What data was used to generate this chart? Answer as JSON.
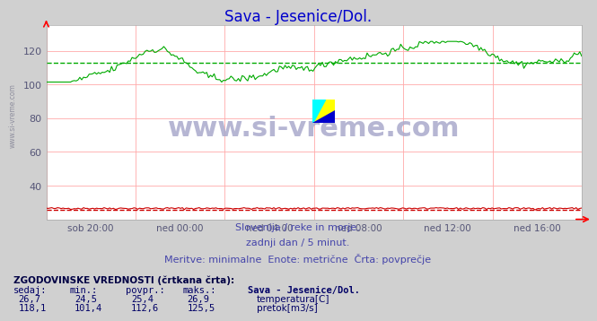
{
  "title": "Sava - Jesenice/Dol.",
  "title_color": "#0000cc",
  "bg_color": "#d0d0d0",
  "plot_bg_color": "#ffffff",
  "xlabel_ticks": [
    "sob 20:00",
    "ned 00:00",
    "ned 04:00",
    "ned 08:00",
    "ned 12:00",
    "ned 16:00"
  ],
  "ylim": [
    20,
    135
  ],
  "yticks": [
    40,
    60,
    80,
    100,
    120
  ],
  "tick_color": "#555577",
  "sub_text1": "Slovenija / reke in morje.",
  "sub_text2": "zadnji dan / 5 minut.",
  "sub_text3": "Meritve: minimalne  Enote: metrične  Črta: povprečje",
  "sub_color": "#4444aa",
  "legend_title": "ZGODOVINSKE VREDNOSTI (črtkana črta):",
  "legend_headers": [
    "sedaj:",
    "min.:",
    "povpr.:",
    "maks.:",
    "Sava - Jesenice/Dol."
  ],
  "legend_row1": [
    "26,7",
    "24,5",
    "25,4",
    "26,9"
  ],
  "legend_row2": [
    "118,1",
    "101,4",
    "112,6",
    "125,5"
  ],
  "legend_label1": "temperatura[C]",
  "legend_label2": "pretok[m3/s]",
  "legend_color1": "#cc0000",
  "legend_color2": "#00aa00",
  "legend_text_color": "#000066",
  "temp_avg": 25.4,
  "flow_avg": 112.6,
  "temp_color": "#cc0000",
  "flow_color": "#00aa00",
  "n_points": 288
}
